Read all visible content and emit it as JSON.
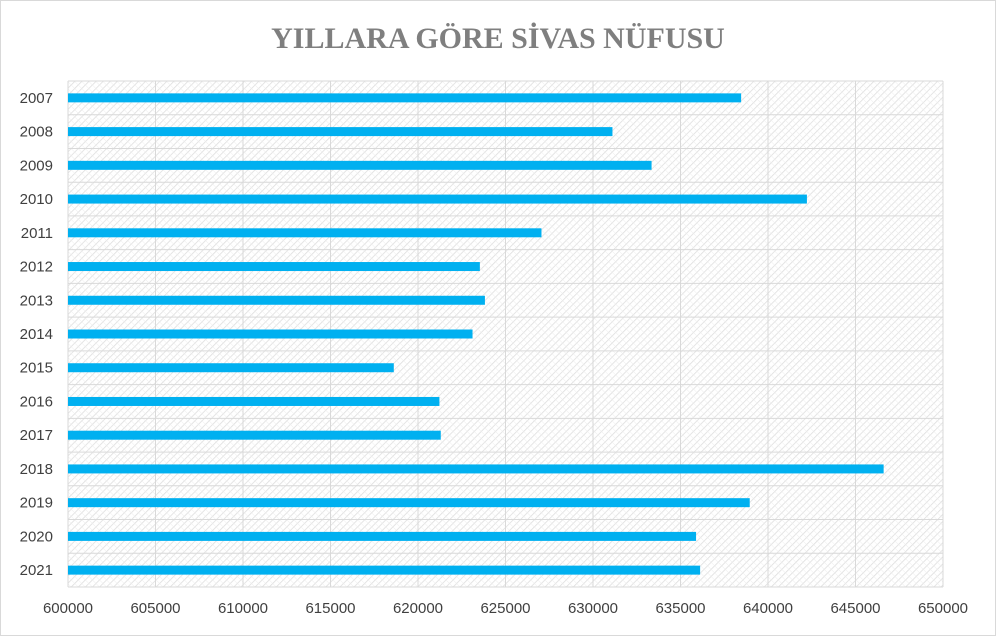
{
  "chart_data": {
    "type": "bar",
    "orientation": "horizontal",
    "title": "YILLARA GÖRE SİVAS NÜFUSU",
    "xlabel": "",
    "ylabel": "",
    "categories": [
      "2007",
      "2008",
      "2009",
      "2010",
      "2011",
      "2012",
      "2013",
      "2014",
      "2015",
      "2016",
      "2017",
      "2018",
      "2019",
      "2020",
      "2021"
    ],
    "series": [
      {
        "name": "",
        "values": [
          638464,
          631112,
          633347,
          642224,
          627056,
          623535,
          623824,
          623116,
          618617,
          621224,
          621301,
          646608,
          638956,
          635889,
          636121
        ]
      }
    ],
    "xlim": [
      600000,
      650000
    ],
    "xticks": [
      "600000",
      "605000",
      "610000",
      "615000",
      "620000",
      "625000",
      "630000",
      "635000",
      "640000",
      "645000",
      "650000"
    ],
    "grid": true,
    "legend": "none",
    "colors": {
      "bar": "#00b0f0",
      "title": "#7f7f7f",
      "grid": "#d9d9d9",
      "hatch": "#e0e0e0",
      "border": "#d9d9d9"
    }
  }
}
